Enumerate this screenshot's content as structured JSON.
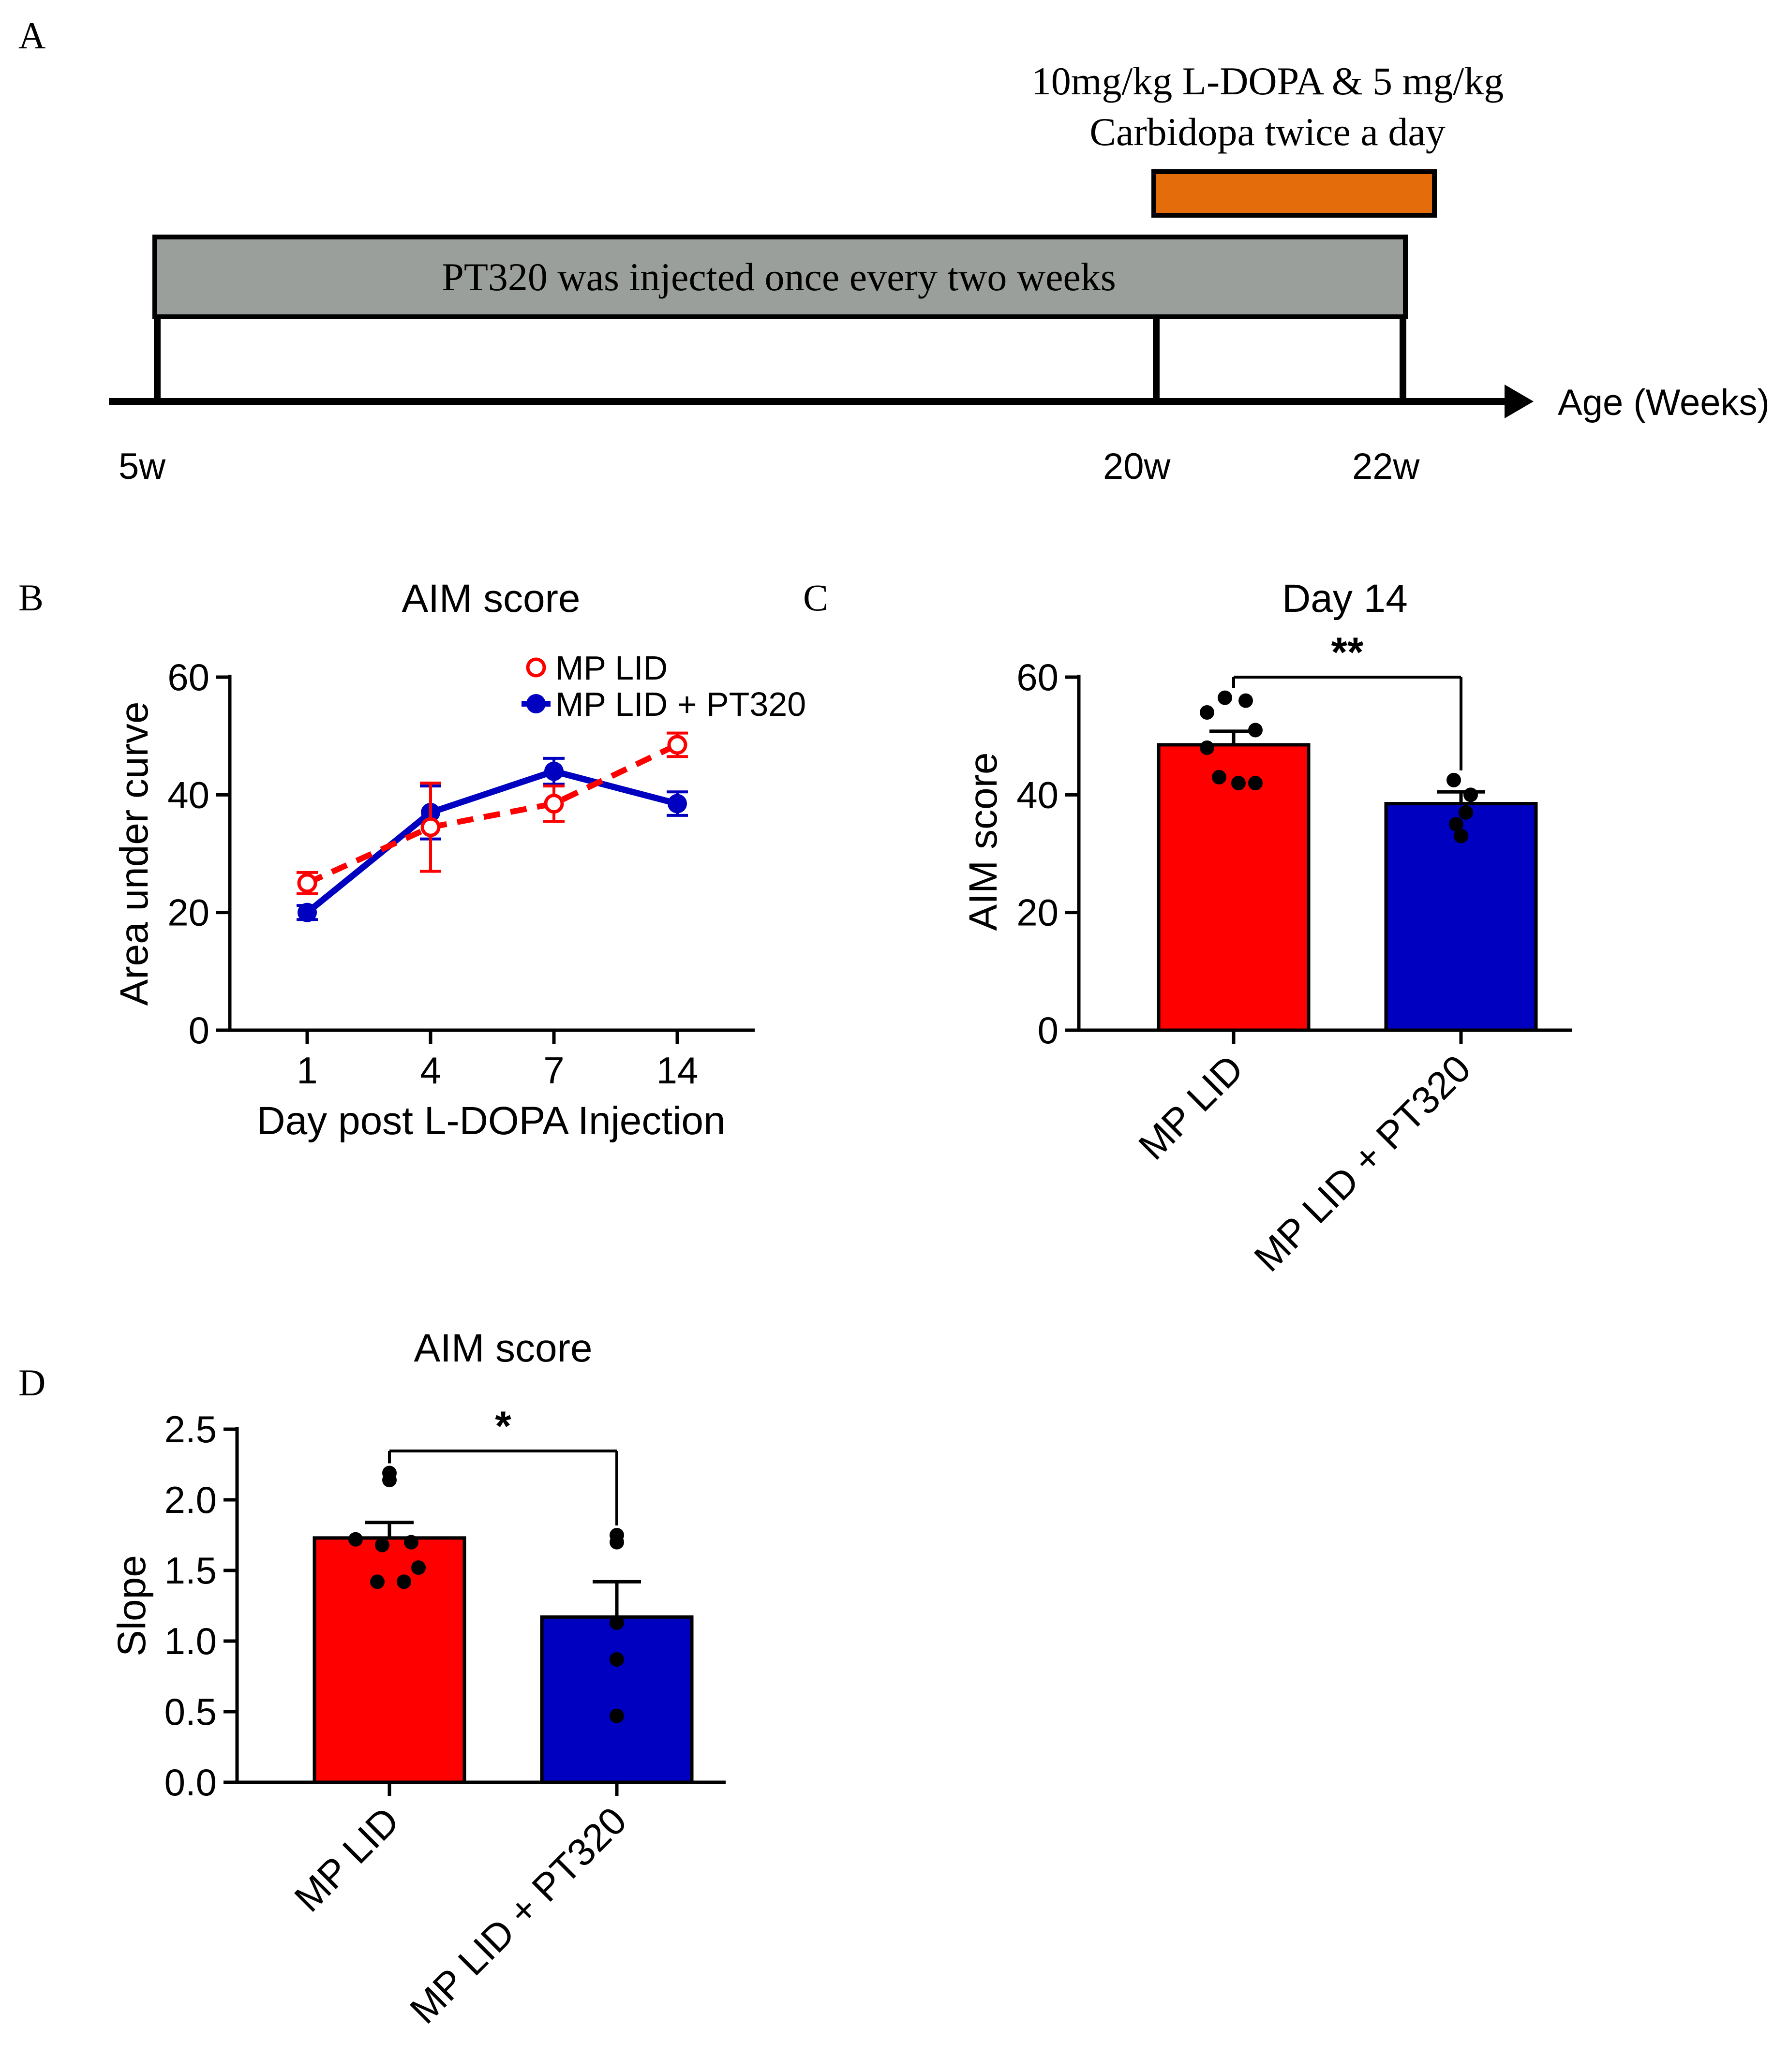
{
  "panels": {
    "a": "A",
    "b": "B",
    "c": "C",
    "d": "D"
  },
  "timeline": {
    "bar_label": "PT320 was injected once every two weeks",
    "treatment_line1": "10mg/kg L-DOPA & 5 mg/kg",
    "treatment_line2": "Carbidopa twice a day",
    "axis_label": "Age (Weeks)",
    "ticks": [
      "5w",
      "20w",
      "22w"
    ],
    "bar_color": "#9a9f9b",
    "treatment_color": "#e46c0a"
  },
  "colors": {
    "red": "#ff0000",
    "blue": "#0000c0",
    "dot": "#000000"
  },
  "chart_data": [
    {
      "id": "B",
      "type": "line",
      "title": "AIM score",
      "xlabel": "Day post L-DOPA Injection",
      "ylabel": "Area under curve",
      "categories": [
        "1",
        "4",
        "7",
        "14"
      ],
      "ylim": [
        0,
        60
      ],
      "yticks": [
        "0",
        "20",
        "40",
        "60"
      ],
      "legend_position": "top-right",
      "series": [
        {
          "name": "MP LID",
          "style": "dashed, open circle",
          "color": "#ff0000",
          "values": [
            25,
            34.5,
            38.5,
            48.5
          ],
          "errors": [
            1.8,
            7.5,
            3,
            2
          ]
        },
        {
          "name": "MP LID + PT320",
          "style": "solid, filled circle",
          "color": "#0000c0",
          "values": [
            20,
            37,
            44,
            38.5
          ],
          "errors": [
            1.2,
            4.5,
            2.2,
            2
          ]
        }
      ]
    },
    {
      "id": "C",
      "type": "bar",
      "title": "Day 14",
      "ylabel": "AIM score",
      "categories": [
        "MP LID",
        "MP LID + PT320"
      ],
      "ylim": [
        0,
        60
      ],
      "yticks": [
        "0",
        "20",
        "40",
        "60"
      ],
      "values": [
        48.5,
        38.5
      ],
      "errors": [
        2.3,
        2
      ],
      "points": [
        [
          56.5,
          56,
          54,
          51,
          48,
          43,
          42,
          42
        ],
        [
          42.5,
          40,
          37,
          35,
          33
        ]
      ],
      "significance": "**"
    },
    {
      "id": "D",
      "type": "bar",
      "title": "AIM score",
      "ylabel": "Slope",
      "categories": [
        "MP LID",
        "MP LID + PT320"
      ],
      "ylim": [
        0,
        2.5
      ],
      "yticks": [
        "0.0",
        "0.5",
        "1.0",
        "1.5",
        "2.0",
        "2.5"
      ],
      "values": [
        1.73,
        1.17
      ],
      "errors": [
        0.11,
        0.25
      ],
      "points": [
        [
          2.19,
          2.14,
          1.72,
          1.7,
          1.68,
          1.52,
          1.42,
          1.42
        ],
        [
          1.75,
          1.7,
          1.13,
          0.87,
          0.47
        ]
      ],
      "significance": "*"
    }
  ]
}
